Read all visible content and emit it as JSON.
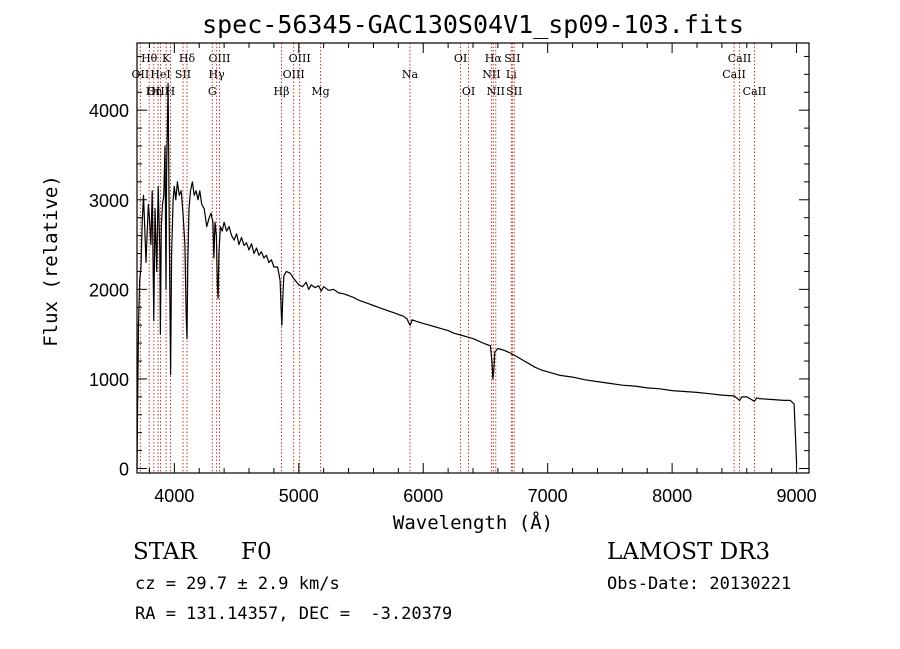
{
  "chart_data": {
    "type": "line",
    "title": "spec-56345-GAC130S04V1_sp09-103.fits",
    "xlabel": "Wavelength (Å)",
    "ylabel": "Flux (relative)",
    "xlim": [
      3700,
      9100
    ],
    "ylim": [
      -50,
      4750
    ],
    "x_ticks": [
      4000,
      5000,
      6000,
      7000,
      8000,
      9000
    ],
    "y_ticks": [
      0,
      1000,
      2000,
      3000,
      4000
    ],
    "x_tick_labels": [
      "4000",
      "5000",
      "6000",
      "7000",
      "8000",
      "9000"
    ],
    "y_tick_labels": [
      "0",
      "1000",
      "2000",
      "3000",
      "4000"
    ],
    "grid": false,
    "series": [
      {
        "name": "spectrum",
        "points": [
          [
            3700,
            0
          ],
          [
            3705,
            700
          ],
          [
            3712,
            1600
          ],
          [
            3722,
            2100
          ],
          [
            3732,
            2250
          ],
          [
            3742,
            2750
          ],
          [
            3752,
            3050
          ],
          [
            3762,
            2700
          ],
          [
            3772,
            2300
          ],
          [
            3782,
            2650
          ],
          [
            3792,
            2950
          ],
          [
            3800,
            2800
          ],
          [
            3812,
            2500
          ],
          [
            3822,
            3100
          ],
          [
            3835,
            1650
          ],
          [
            3845,
            2900
          ],
          [
            3858,
            2200
          ],
          [
            3870,
            3150
          ],
          [
            3883,
            2450
          ],
          [
            3888,
            1500
          ],
          [
            3895,
            2700
          ],
          [
            3905,
            2950
          ],
          [
            3915,
            3050
          ],
          [
            3925,
            3600
          ],
          [
            3933,
            2000
          ],
          [
            3938,
            3300
          ],
          [
            3950,
            4300
          ],
          [
            3960,
            2500
          ],
          [
            3970,
            1050
          ],
          [
            3978,
            2400
          ],
          [
            3990,
            3000
          ],
          [
            4000,
            3150
          ],
          [
            4012,
            3000
          ],
          [
            4025,
            3200
          ],
          [
            4040,
            3050
          ],
          [
            4055,
            3100
          ],
          [
            4070,
            2850
          ],
          [
            4085,
            2500
          ],
          [
            4095,
            1700
          ],
          [
            4102,
            1450
          ],
          [
            4108,
            2300
          ],
          [
            4118,
            2900
          ],
          [
            4130,
            3100
          ],
          [
            4145,
            3200
          ],
          [
            4160,
            3050
          ],
          [
            4175,
            3100
          ],
          [
            4190,
            3000
          ],
          [
            4205,
            3100
          ],
          [
            4220,
            2950
          ],
          [
            4240,
            2900
          ],
          [
            4260,
            2700
          ],
          [
            4280,
            2800
          ],
          [
            4295,
            2850
          ],
          [
            4310,
            2750
          ],
          [
            4318,
            2350
          ],
          [
            4327,
            2750
          ],
          [
            4338,
            2600
          ],
          [
            4345,
            2050
          ],
          [
            4352,
            1900
          ],
          [
            4358,
            2400
          ],
          [
            4370,
            2700
          ],
          [
            4385,
            2650
          ],
          [
            4400,
            2750
          ],
          [
            4420,
            2650
          ],
          [
            4440,
            2700
          ],
          [
            4460,
            2600
          ],
          [
            4480,
            2550
          ],
          [
            4500,
            2620
          ],
          [
            4520,
            2500
          ],
          [
            4540,
            2580
          ],
          [
            4560,
            2490
          ],
          [
            4580,
            2520
          ],
          [
            4600,
            2440
          ],
          [
            4620,
            2510
          ],
          [
            4640,
            2400
          ],
          [
            4660,
            2460
          ],
          [
            4680,
            2380
          ],
          [
            4700,
            2420
          ],
          [
            4720,
            2350
          ],
          [
            4740,
            2380
          ],
          [
            4760,
            2300
          ],
          [
            4780,
            2330
          ],
          [
            4800,
            2250
          ],
          [
            4830,
            2250
          ],
          [
            4850,
            2100
          ],
          [
            4860,
            1700
          ],
          [
            4864,
            1600
          ],
          [
            4870,
            1850
          ],
          [
            4880,
            2150
          ],
          [
            4900,
            2200
          ],
          [
            4930,
            2180
          ],
          [
            4960,
            2120
          ],
          [
            5000,
            2050
          ],
          [
            5030,
            2030
          ],
          [
            5060,
            2080
          ],
          [
            5080,
            2000
          ],
          [
            5100,
            2050
          ],
          [
            5130,
            2020
          ],
          [
            5160,
            2040
          ],
          [
            5180,
            1980
          ],
          [
            5200,
            2030
          ],
          [
            5240,
            1990
          ],
          [
            5280,
            2000
          ],
          [
            5320,
            1960
          ],
          [
            5360,
            1950
          ],
          [
            5400,
            1930
          ],
          [
            5440,
            1910
          ],
          [
            5480,
            1880
          ],
          [
            5520,
            1860
          ],
          [
            5560,
            1840
          ],
          [
            5600,
            1820
          ],
          [
            5640,
            1800
          ],
          [
            5680,
            1780
          ],
          [
            5720,
            1760
          ],
          [
            5760,
            1740
          ],
          [
            5800,
            1720
          ],
          [
            5840,
            1700
          ],
          [
            5870,
            1670
          ],
          [
            5890,
            1610
          ],
          [
            5896,
            1600
          ],
          [
            5910,
            1660
          ],
          [
            5950,
            1640
          ],
          [
            6000,
            1620
          ],
          [
            6050,
            1600
          ],
          [
            6100,
            1580
          ],
          [
            6150,
            1560
          ],
          [
            6200,
            1540
          ],
          [
            6250,
            1510
          ],
          [
            6300,
            1490
          ],
          [
            6350,
            1470
          ],
          [
            6400,
            1450
          ],
          [
            6450,
            1420
          ],
          [
            6500,
            1390
          ],
          [
            6540,
            1370
          ],
          [
            6552,
            1200
          ],
          [
            6560,
            1000
          ],
          [
            6566,
            1080
          ],
          [
            6575,
            1300
          ],
          [
            6600,
            1340
          ],
          [
            6650,
            1320
          ],
          [
            6700,
            1290
          ],
          [
            6750,
            1250
          ],
          [
            6800,
            1210
          ],
          [
            6850,
            1170
          ],
          [
            6900,
            1130
          ],
          [
            6950,
            1100
          ],
          [
            7000,
            1080
          ],
          [
            7100,
            1040
          ],
          [
            7200,
            1020
          ],
          [
            7300,
            990
          ],
          [
            7400,
            970
          ],
          [
            7500,
            950
          ],
          [
            7600,
            930
          ],
          [
            7700,
            920
          ],
          [
            7800,
            900
          ],
          [
            7900,
            890
          ],
          [
            8000,
            870
          ],
          [
            8100,
            860
          ],
          [
            8200,
            850
          ],
          [
            8300,
            835
          ],
          [
            8400,
            820
          ],
          [
            8500,
            810
          ],
          [
            8542,
            760
          ],
          [
            8560,
            800
          ],
          [
            8600,
            800
          ],
          [
            8662,
            750
          ],
          [
            8680,
            790
          ],
          [
            8700,
            780
          ],
          [
            8800,
            770
          ],
          [
            8900,
            760
          ],
          [
            8950,
            760
          ],
          [
            8980,
            720
          ],
          [
            8990,
            400
          ],
          [
            9000,
            50
          ]
        ]
      }
    ],
    "lines": [
      {
        "label": "Hθ",
        "wavelength": 3798,
        "row": 1
      },
      {
        "label": "OII",
        "wavelength": 3727,
        "row": 2
      },
      {
        "label": "OIII",
        "wavelength": 3869,
        "row": 3
      },
      {
        "label": "Hη",
        "wavelength": 3835,
        "row": 3
      },
      {
        "label": "K",
        "wavelength": 3934,
        "row": 1
      },
      {
        "label": "HeI",
        "wavelength": 3889,
        "row": 2
      },
      {
        "label": "H",
        "wavelength": 3969,
        "row": 3
      },
      {
        "label": "SII",
        "wavelength": 4070,
        "row": 2
      },
      {
        "label": "Hδ",
        "wavelength": 4102,
        "row": 1
      },
      {
        "label": "OIII",
        "wavelength": 4363,
        "row": 1
      },
      {
        "label": "Hγ",
        "wavelength": 4340,
        "row": 2
      },
      {
        "label": "G",
        "wavelength": 4305,
        "row": 3
      },
      {
        "label": "Hβ",
        "wavelength": 4861,
        "row": 3
      },
      {
        "label": "OIII",
        "wavelength": 4959,
        "row": 2
      },
      {
        "label": "OIII",
        "wavelength": 5007,
        "row": 1
      },
      {
        "label": "Mg",
        "wavelength": 5175,
        "row": 3
      },
      {
        "label": "Na",
        "wavelength": 5894,
        "row": 2
      },
      {
        "label": "OI",
        "wavelength": 6300,
        "row": 1
      },
      {
        "label": "OI",
        "wavelength": 6364,
        "row": 3
      },
      {
        "label": "Hα",
        "wavelength": 6563,
        "row": 1
      },
      {
        "label": "NII",
        "wavelength": 6548,
        "row": 2
      },
      {
        "label": "NII",
        "wavelength": 6583,
        "row": 3
      },
      {
        "label": "SII",
        "wavelength": 6716,
        "row": 1
      },
      {
        "label": "Li",
        "wavelength": 6708,
        "row": 2
      },
      {
        "label": "SII",
        "wavelength": 6731,
        "row": 3
      },
      {
        "label": "CaII",
        "wavelength": 8498,
        "row": 2
      },
      {
        "label": "CaII",
        "wavelength": 8542,
        "row": 1
      },
      {
        "label": "CaII",
        "wavelength": 8662,
        "row": 3
      }
    ]
  },
  "footer": {
    "class_label": "STAR",
    "subclass": "F0",
    "survey": "LAMOST DR3",
    "cz": "cz = 29.7 ± 2.9 km/s",
    "obs_date": "Obs-Date: 20130221",
    "coords": "RA = 131.14357, DEC =  -3.20379"
  },
  "colors": {
    "line_marker": "#c0392b",
    "spectrum": "#000000",
    "axes": "#000000"
  }
}
